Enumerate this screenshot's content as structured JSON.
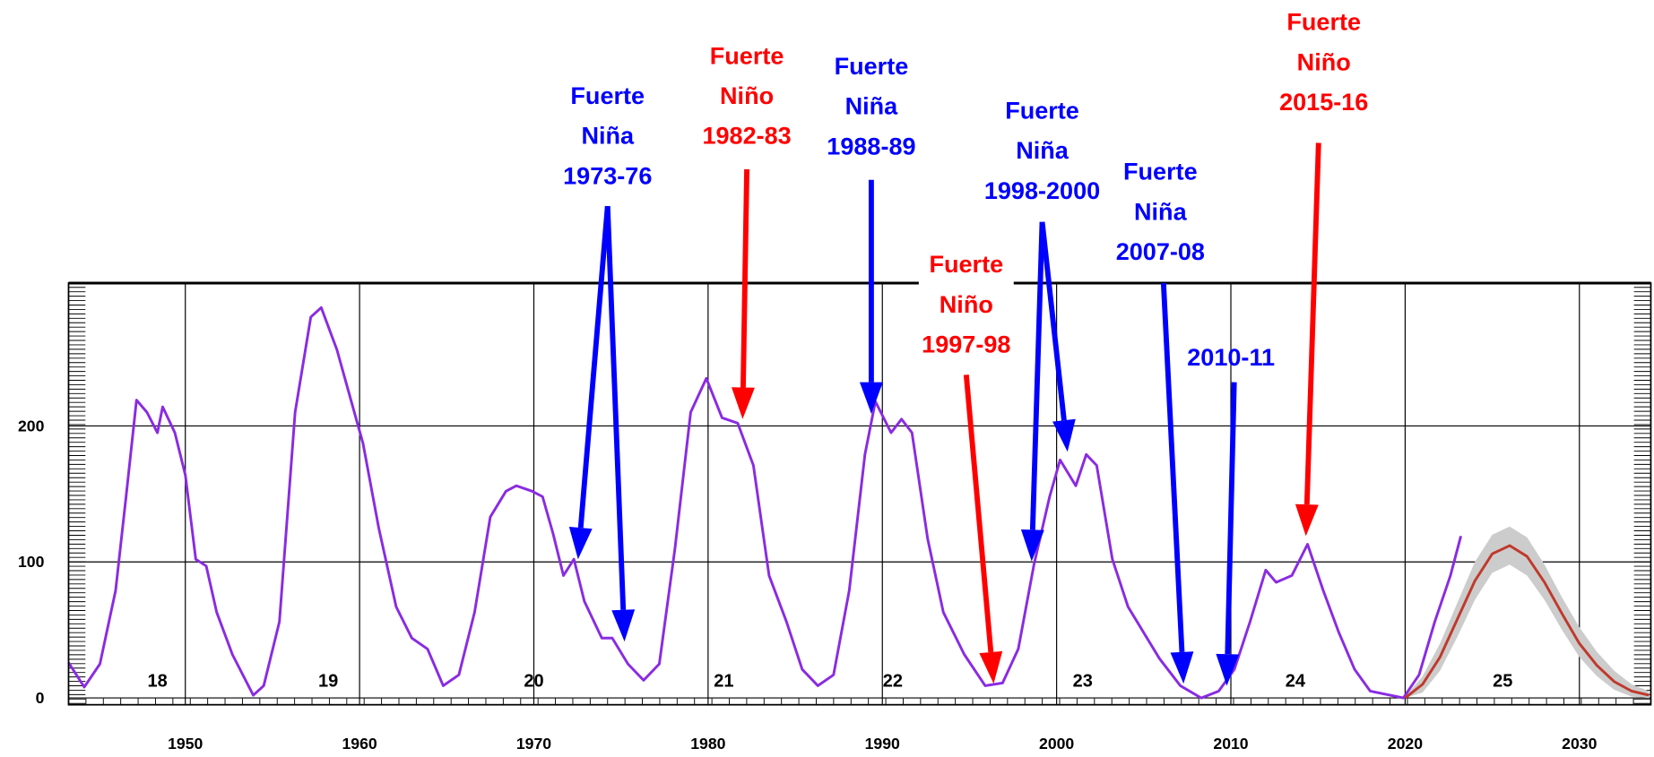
{
  "chart_data": {
    "type": "line",
    "xlim": [
      1943.3,
      2034.1
    ],
    "ylim": [
      -5,
      305
    ],
    "xticks": [
      1950,
      1960,
      1970,
      1980,
      1990,
      2000,
      2010,
      2020,
      2030
    ],
    "yticks": [
      0,
      100,
      200
    ],
    "grid": true,
    "series": [
      {
        "color": "#8a2be2",
        "x": [
          1943.3,
          1944.2,
          1945.1,
          1946.0,
          1946.6,
          1947.2,
          1947.8,
          1948.4,
          1948.7,
          1949.4,
          1950.0,
          1950.6,
          1951.2,
          1951.8,
          1952.7,
          1953.9,
          1954.5,
          1955.4,
          1956.3,
          1957.2,
          1957.8,
          1958.7,
          1960.2,
          1961.1,
          1962.1,
          1963.0,
          1963.9,
          1964.8,
          1965.7,
          1966.6,
          1967.5,
          1968.4,
          1969.0,
          1969.9,
          1970.5,
          1971.1,
          1971.7,
          1972.3,
          1972.9,
          1973.9,
          1974.5,
          1975.4,
          1976.3,
          1977.2,
          1978.1,
          1979.0,
          1979.9,
          1980.8,
          1981.7,
          1982.6,
          1983.5,
          1984.5,
          1985.4,
          1986.3,
          1987.2,
          1988.1,
          1989.0,
          1989.6,
          1990.5,
          1991.1,
          1991.7,
          1992.6,
          1993.5,
          1994.7,
          1995.9,
          1996.9,
          1997.8,
          1998.7,
          1999.6,
          2000.2,
          2001.1,
          2001.7,
          2002.3,
          2003.2,
          2004.1,
          2005.0,
          2005.9,
          2007.1,
          2008.3,
          2009.3,
          2010.2,
          2011.1,
          2012.0,
          2012.6,
          2013.5,
          2014.4,
          2015.3,
          2016.2,
          2017.1,
          2018.0,
          2019.9,
          2020.8,
          2021.7,
          2022.6,
          2023.2
        ],
        "values": [
          26,
          8,
          25,
          79,
          148,
          219,
          210,
          195,
          214,
          195,
          164,
          102,
          97,
          63,
          32,
          2,
          9,
          56,
          210,
          280,
          287,
          256,
          187,
          125,
          67,
          44,
          36,
          9,
          17,
          63,
          133,
          152,
          156,
          152,
          148,
          121,
          90,
          102,
          71,
          44,
          44,
          25,
          13,
          25,
          110,
          210,
          235,
          206,
          202,
          171,
          90,
          56,
          21,
          9,
          17,
          79,
          179,
          218,
          195,
          205,
          195,
          117,
          63,
          32,
          9,
          11,
          36,
          98,
          148,
          175,
          156,
          179,
          171,
          102,
          67,
          48,
          29,
          9,
          0,
          5,
          21,
          56,
          94,
          85,
          90,
          113,
          79,
          48,
          21,
          5,
          0,
          17,
          56,
          90,
          119
        ]
      },
      {
        "color": "#c0392b",
        "x": [
          2020,
          2021,
          2022,
          2023,
          2024,
          2025,
          2026,
          2027,
          2028,
          2029,
          2030,
          2031,
          2032,
          2033,
          2034
        ],
        "values": [
          0,
          10,
          30,
          58,
          86,
          106,
          112,
          104,
          85,
          62,
          40,
          24,
          12,
          5,
          2
        ]
      }
    ],
    "band": {
      "color": "#cccccc",
      "x": [
        2020,
        2021,
        2022,
        2023,
        2024,
        2025,
        2026,
        2027,
        2028,
        2029,
        2030,
        2031,
        2032,
        2033,
        2034
      ],
      "lower": [
        0,
        4,
        20,
        45,
        72,
        92,
        98,
        90,
        72,
        50,
        30,
        16,
        6,
        1,
        0
      ],
      "upper": [
        1,
        16,
        40,
        70,
        100,
        120,
        126,
        118,
        98,
        74,
        52,
        34,
        20,
        10,
        5
      ]
    },
    "cycles": [
      {
        "label": "18",
        "x": 1948.4
      },
      {
        "label": "19",
        "x": 1958.2
      },
      {
        "label": "20",
        "x": 1970.0
      },
      {
        "label": "21",
        "x": 1980.9
      },
      {
        "label": "22",
        "x": 1990.6
      },
      {
        "label": "23",
        "x": 2001.5
      },
      {
        "label": "24",
        "x": 2013.7
      },
      {
        "label": "25",
        "x": 2025.6
      }
    ],
    "annotations": [
      {
        "lines": [
          "Fuerte",
          "Niña",
          "1973-76"
        ],
        "color": "#0000ff"
      },
      {
        "lines": [
          "Fuerte",
          "Niño",
          "1982-83"
        ],
        "color": "#ff0000"
      },
      {
        "lines": [
          "Fuerte",
          "Niña",
          "1988-89"
        ],
        "color": "#0000ff"
      },
      {
        "lines": [
          "Fuerte",
          "Niño",
          "1997-98"
        ],
        "color": "#ff0000"
      },
      {
        "lines": [
          "Fuerte",
          "Niña",
          "1998-2000"
        ],
        "color": "#0000ff"
      },
      {
        "lines": [
          "Fuerte",
          "Niña",
          "2007-08"
        ],
        "color": "#0000ff"
      },
      {
        "lines": [
          "2010-11"
        ],
        "color": "#0000ff"
      },
      {
        "lines": [
          "Fuerte",
          "Niño",
          "2015-16"
        ],
        "color": "#ff0000"
      }
    ]
  }
}
